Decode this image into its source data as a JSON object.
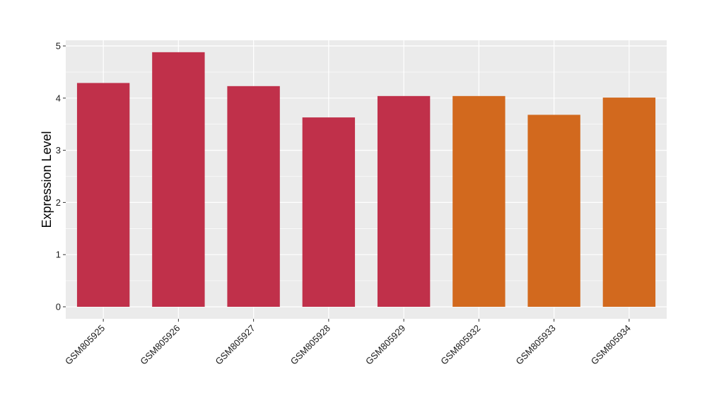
{
  "chart_data": {
    "type": "bar",
    "title": "",
    "xlabel": "",
    "ylabel": "Expression Level",
    "categories": [
      "GSM805925",
      "GSM805926",
      "GSM805927",
      "GSM805928",
      "GSM805929",
      "GSM805932",
      "GSM805933",
      "GSM805934"
    ],
    "values": [
      4.29,
      4.88,
      4.23,
      3.63,
      4.04,
      4.04,
      3.68,
      4.01
    ],
    "bar_colors": [
      "#C0304A",
      "#C0304A",
      "#C0304A",
      "#C0304A",
      "#C0304A",
      "#D2691E",
      "#D2691E",
      "#D2691E"
    ],
    "yticks": [
      0,
      1,
      2,
      3,
      4,
      5
    ],
    "ylim": [
      -0.23,
      5.1
    ],
    "grid": true,
    "legend": "none",
    "panel_background": "#EBEBEB",
    "grid_color": "#FFFFFF"
  }
}
